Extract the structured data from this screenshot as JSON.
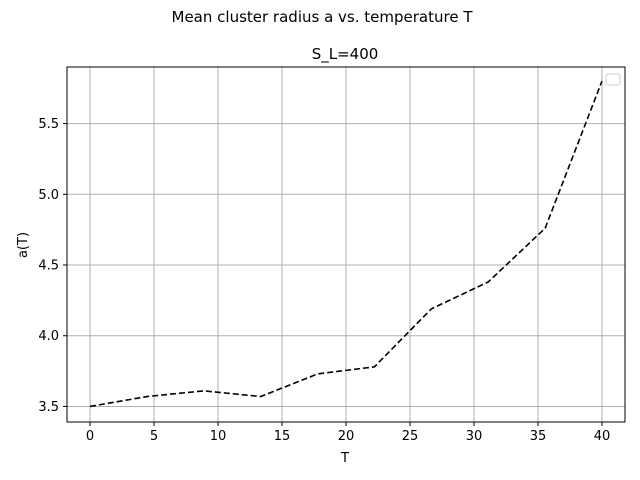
{
  "chart_data": {
    "type": "line",
    "suptitle": "Mean cluster radius a vs. temperature T",
    "title": "S_L=400",
    "xlabel": "T",
    "ylabel": "a(T)",
    "xlim": [
      -1.8,
      41.8
    ],
    "ylim": [
      3.39,
      5.9
    ],
    "xticks": [
      0,
      5,
      10,
      15,
      20,
      25,
      30,
      35,
      40
    ],
    "yticks": [
      3.5,
      4.0,
      4.5,
      5.0,
      5.5
    ],
    "grid": true,
    "legend": "top-right",
    "series": [
      {
        "color": "#000000",
        "linestyle": "dashed",
        "x": [
          0,
          4.44,
          8.89,
          13.33,
          17.78,
          22.22,
          26.67,
          31.11,
          35.56,
          40
        ],
        "y": [
          3.5,
          3.57,
          3.61,
          3.57,
          3.73,
          3.78,
          4.19,
          4.38,
          4.76,
          5.8
        ]
      }
    ]
  }
}
